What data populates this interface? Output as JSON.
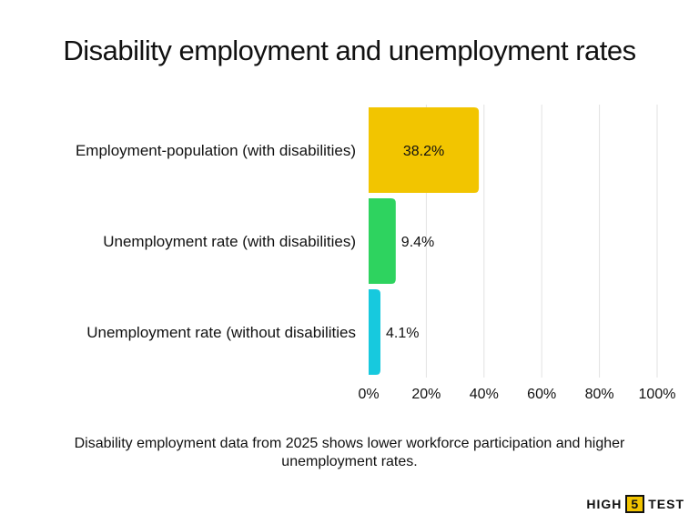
{
  "title": "Disability employment and unemployment rates",
  "caption": "Disability employment data from 2025 shows lower workforce participation and higher unemployment rates.",
  "brand": {
    "part1": "HIGH",
    "part2": "5",
    "part3": "TEST"
  },
  "chart_data": {
    "type": "bar",
    "orientation": "horizontal",
    "title": "Disability employment and unemployment rates",
    "categories": [
      "Employment-population (with disabilities)",
      "Unemployment rate (with disabilities)",
      "Unemployment rate (without disabilities"
    ],
    "values": [
      38.2,
      9.4,
      4.1
    ],
    "data_labels": [
      "38.2%",
      "9.4%",
      "4.1%"
    ],
    "colors": [
      "#f2c500",
      "#2ed35f",
      "#17c9de"
    ],
    "xlim": [
      0,
      100
    ],
    "x_ticks": [
      0,
      20,
      40,
      60,
      80,
      100
    ],
    "x_tick_labels": [
      "0%",
      "20%",
      "40%",
      "60%",
      "80%",
      "100%"
    ],
    "xlabel": "",
    "ylabel": "",
    "grid": "vertical",
    "legend": "none"
  }
}
